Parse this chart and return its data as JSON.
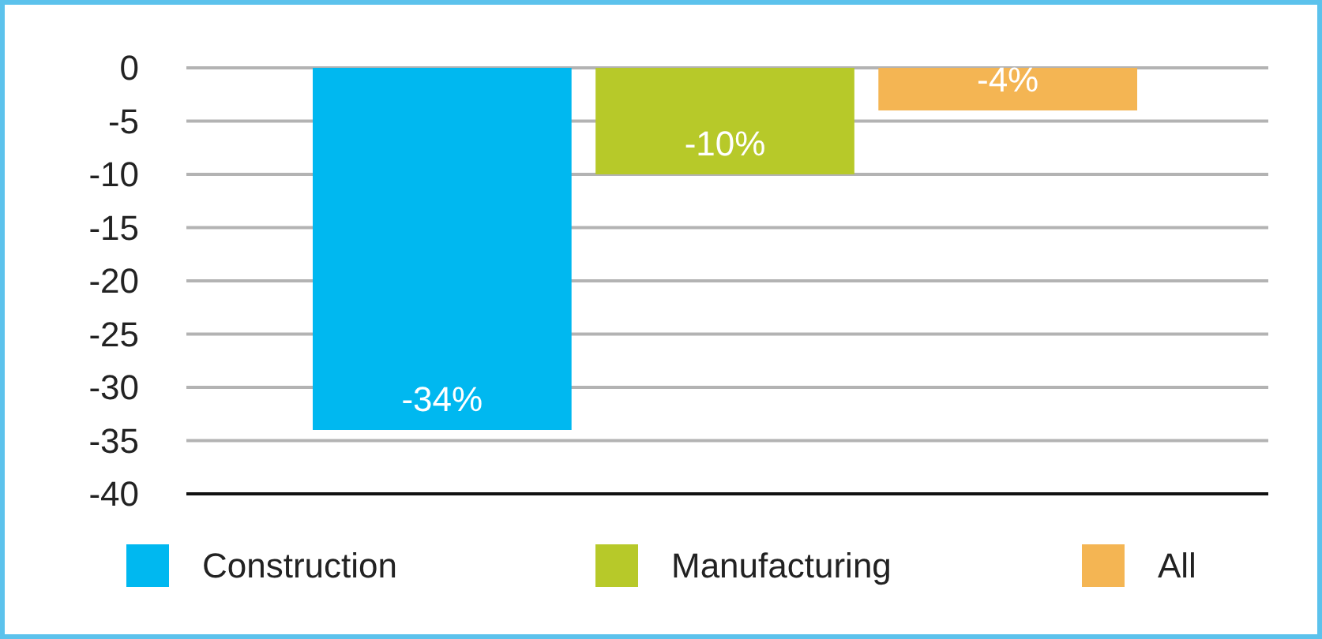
{
  "chart_data": {
    "type": "bar",
    "categories": [
      null
    ],
    "series": [
      {
        "name": "Construction",
        "color": "#00b8f0",
        "values": [
          -34
        ],
        "value_labels": [
          "-34%"
        ]
      },
      {
        "name": "Manufacturing",
        "color": "#b7c929",
        "values": [
          -10
        ],
        "value_labels": [
          "-10%"
        ]
      },
      {
        "name": "All",
        "color": "#f4b553",
        "values": [
          -4
        ],
        "value_labels": [
          "-4%"
        ]
      }
    ],
    "ylim": [
      -40,
      0
    ],
    "yticks": [
      0,
      -5,
      -10,
      -15,
      -20,
      -25,
      -30,
      -35,
      -40
    ],
    "grid": "y",
    "legend": "bottom"
  }
}
